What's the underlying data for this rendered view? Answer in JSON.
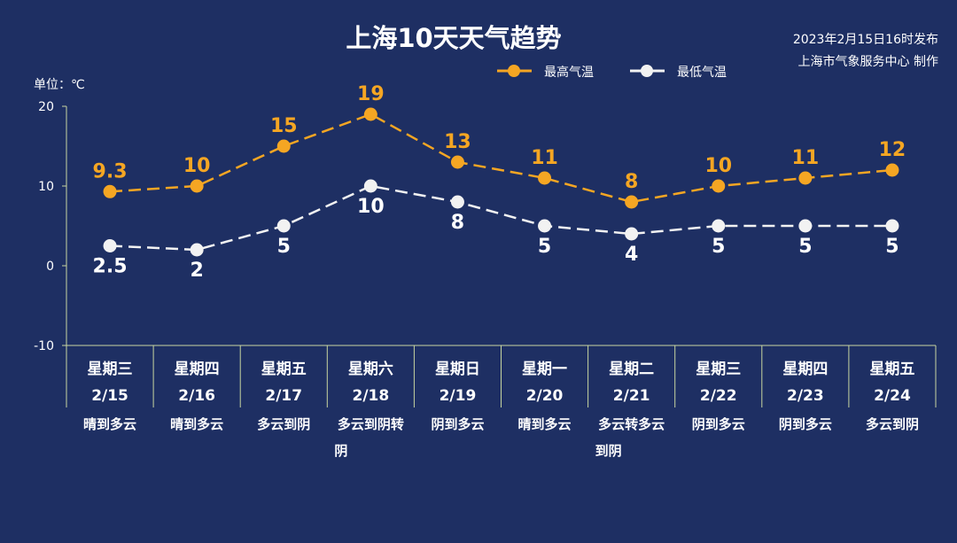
{
  "header": {
    "title": "上海10天天气趋势",
    "publish_time": "2023年2月15日16时发布",
    "publisher": "上海市气象服务中心 制作",
    "unit_label": "单位：℃"
  },
  "colors": {
    "background": "#1e2f63",
    "high": "#f5a623",
    "low": "#f2f2f2",
    "axis": "#c8d6a0"
  },
  "chart_data": {
    "type": "line",
    "title": "上海10天天气趋势",
    "ylabel": "单位：℃",
    "ylim": [
      -10,
      20
    ],
    "yticks": [
      20,
      10,
      0,
      -10
    ],
    "ytick_labels": [
      "20",
      "10",
      "0",
      "-10"
    ],
    "legend_position": "top-right",
    "grid": false,
    "categories": [
      "2/15",
      "2/16",
      "2/17",
      "2/18",
      "2/19",
      "2/20",
      "2/21",
      "2/22",
      "2/23",
      "2/24"
    ],
    "weekdays": [
      "星期三",
      "星期四",
      "星期五",
      "星期六",
      "星期日",
      "星期一",
      "星期二",
      "星期三",
      "星期四",
      "星期五"
    ],
    "weather": [
      [
        "晴到多云"
      ],
      [
        "晴到多云"
      ],
      [
        "多云到阴"
      ],
      [
        "多云到阴转",
        "阴"
      ],
      [
        "阴到多云"
      ],
      [
        "晴到多云"
      ],
      [
        "多云转多云",
        "到阴"
      ],
      [
        "阴到多云"
      ],
      [
        "阴到多云"
      ],
      [
        "多云到阴"
      ]
    ],
    "series": [
      {
        "name": "最高气温",
        "values": [
          9.3,
          10,
          15,
          19,
          13,
          11,
          8,
          10,
          11,
          12
        ],
        "labels": [
          "9.3",
          "10",
          "15",
          "19",
          "13",
          "11",
          "8",
          "10",
          "11",
          "12"
        ],
        "color": "#f5a623"
      },
      {
        "name": "最低气温",
        "values": [
          2.5,
          2,
          5,
          10,
          8,
          5,
          4,
          5,
          5,
          5
        ],
        "labels": [
          "2.5",
          "2",
          "5",
          "10",
          "8",
          "5",
          "4",
          "5",
          "5",
          "5"
        ],
        "color": "#f2f2f2"
      }
    ]
  }
}
